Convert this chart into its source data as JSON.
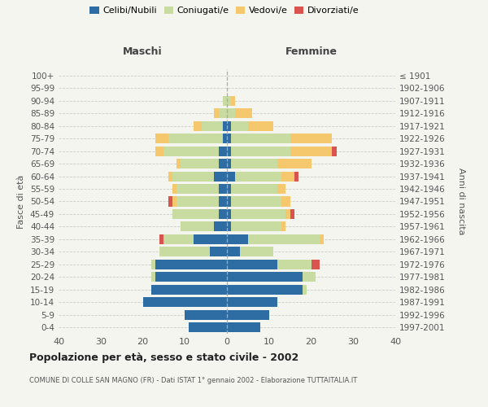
{
  "age_groups": [
    "0-4",
    "5-9",
    "10-14",
    "15-19",
    "20-24",
    "25-29",
    "30-34",
    "35-39",
    "40-44",
    "45-49",
    "50-54",
    "55-59",
    "60-64",
    "65-69",
    "70-74",
    "75-79",
    "80-84",
    "85-89",
    "90-94",
    "95-99",
    "100+"
  ],
  "birth_years": [
    "1997-2001",
    "1992-1996",
    "1987-1991",
    "1982-1986",
    "1977-1981",
    "1972-1976",
    "1967-1971",
    "1962-1966",
    "1957-1961",
    "1952-1956",
    "1947-1951",
    "1942-1946",
    "1937-1941",
    "1932-1936",
    "1927-1931",
    "1922-1926",
    "1917-1921",
    "1912-1916",
    "1907-1911",
    "1902-1906",
    "≤ 1901"
  ],
  "male_celibe": [
    9,
    10,
    20,
    18,
    17,
    17,
    4,
    8,
    3,
    2,
    2,
    2,
    3,
    2,
    2,
    1,
    1,
    0,
    0,
    0,
    0
  ],
  "male_coniugato": [
    0,
    0,
    0,
    0,
    1,
    1,
    12,
    7,
    8,
    11,
    10,
    10,
    10,
    9,
    13,
    13,
    5,
    2,
    1,
    0,
    0
  ],
  "male_vedovo": [
    0,
    0,
    0,
    0,
    0,
    0,
    0,
    0,
    0,
    0,
    1,
    1,
    1,
    1,
    2,
    3,
    2,
    1,
    0,
    0,
    0
  ],
  "male_divorziato": [
    0,
    0,
    0,
    0,
    0,
    0,
    0,
    1,
    0,
    0,
    1,
    0,
    0,
    0,
    0,
    0,
    0,
    0,
    0,
    0,
    0
  ],
  "fem_nubile": [
    8,
    10,
    12,
    18,
    18,
    12,
    3,
    5,
    1,
    1,
    1,
    1,
    2,
    1,
    1,
    1,
    1,
    0,
    0,
    0,
    0
  ],
  "fem_coniugata": [
    0,
    0,
    0,
    1,
    3,
    8,
    8,
    17,
    12,
    13,
    12,
    11,
    11,
    11,
    14,
    14,
    4,
    2,
    1,
    0,
    0
  ],
  "fem_vedova": [
    0,
    0,
    0,
    0,
    0,
    0,
    0,
    1,
    1,
    1,
    2,
    2,
    3,
    8,
    10,
    10,
    6,
    4,
    1,
    0,
    0
  ],
  "fem_divorziata": [
    0,
    0,
    0,
    0,
    0,
    2,
    0,
    0,
    0,
    1,
    0,
    0,
    1,
    0,
    1,
    0,
    0,
    0,
    0,
    0,
    0
  ],
  "color_celibe": "#2e6da4",
  "color_coniugato": "#c8dba0",
  "color_vedovo": "#f5c86e",
  "color_divorziato": "#d9534f",
  "bg_color": "#f5f5f0",
  "xlim": 40,
  "title": "Popolazione per età, sesso e stato civile - 2002",
  "subtitle": "COMUNE DI COLLE SAN MAGNO (FR) - Dati ISTAT 1° gennaio 2002 - Elaborazione TUTTAITALIA.IT",
  "legend_labels": [
    "Celibi/Nubili",
    "Coniugati/e",
    "Vedovi/e",
    "Divorziati/e"
  ],
  "ylabel_left": "Fasce di età",
  "ylabel_right": "Anni di nascita",
  "header_maschi": "Maschi",
  "header_femmine": "Femmine"
}
